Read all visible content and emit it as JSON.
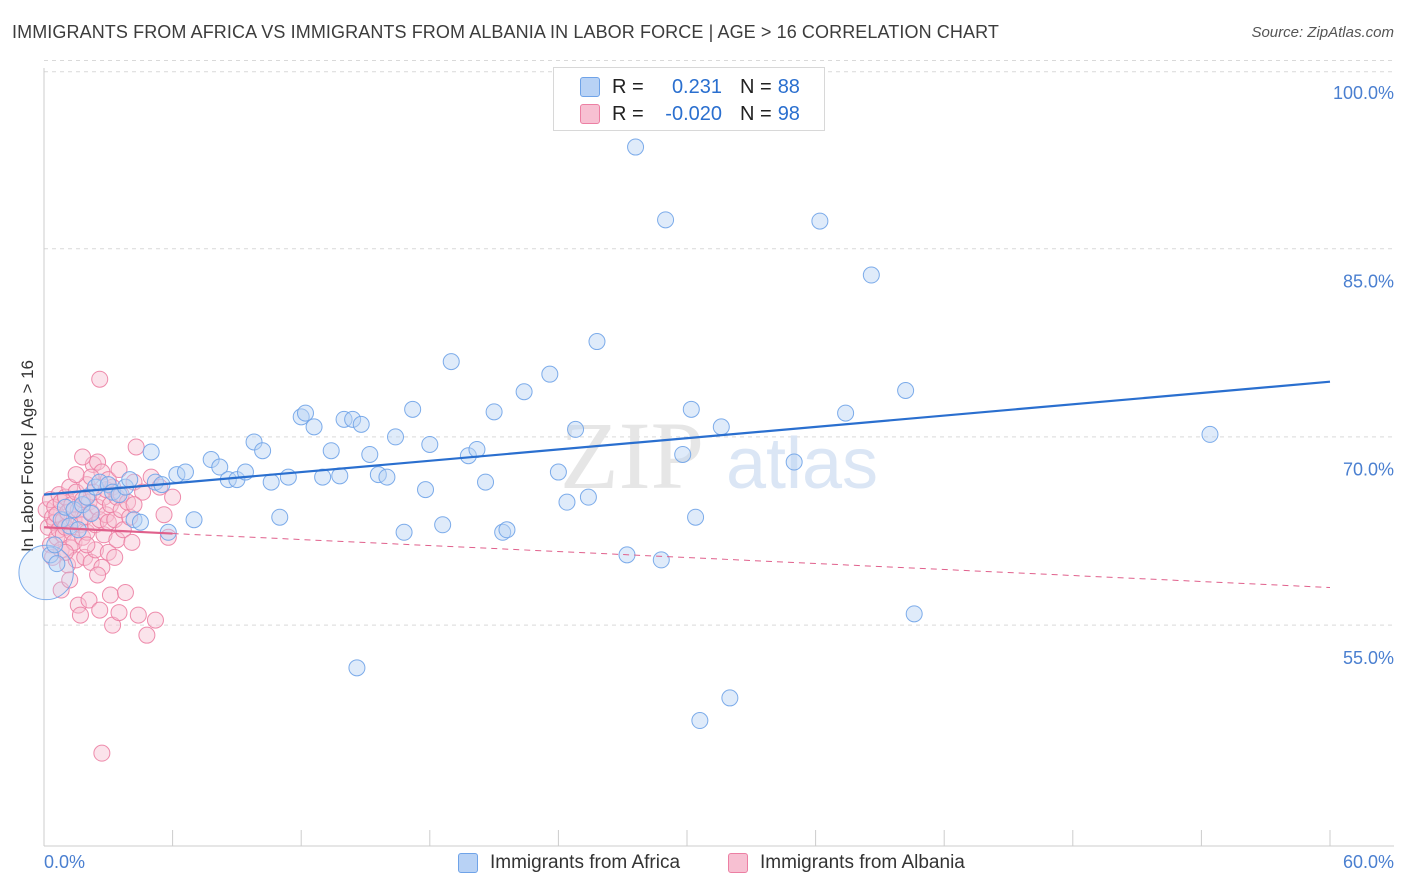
{
  "title": "IMMIGRANTS FROM AFRICA VS IMMIGRANTS FROM ALBANIA IN LABOR FORCE | AGE > 16 CORRELATION CHART",
  "source": "Source: ZipAtlas.com",
  "watermark": {
    "zip": "ZIP",
    "atlas": "atlas"
  },
  "colors": {
    "africa": "#6fa3e8",
    "africa_fill": "#b8d2f5",
    "africa_line": "#2a6fcf",
    "albania": "#ec7fa3",
    "albania_fill": "#f7c0d2",
    "albania_line": "#e0608c",
    "tick_label": "#4a7fd0",
    "grid": "#d9d9d9"
  },
  "legend": {
    "rows": [
      {
        "series": "africa",
        "r_label": "R =",
        "r_value": "0.231",
        "n_label": "N =",
        "n_value": "88"
      },
      {
        "series": "albania",
        "r_label": "R =",
        "r_value": "-0.020",
        "n_label": "N =",
        "n_value": "98"
      }
    ]
  },
  "bottom_legend": [
    {
      "series": "africa",
      "label": "Immigrants from Africa"
    },
    {
      "series": "albania",
      "label": "Immigrants from Albania"
    }
  ],
  "chart_data": {
    "type": "scatter",
    "title": "IMMIGRANTS FROM AFRICA VS IMMIGRANTS FROM ALBANIA IN LABOR FORCE | AGE > 16 CORRELATION CHART",
    "xlabel": "",
    "ylabel": "In Labor Force | Age > 16",
    "xlim": [
      0,
      60
    ],
    "ylim": [
      40,
      102
    ],
    "x_tick_labels": [
      "0.0%",
      "60.0%"
    ],
    "y_ticks": [
      100,
      85,
      70,
      55
    ],
    "y_tick_labels": [
      "100.0%",
      "85.0%",
      "70.0%",
      "55.0%"
    ],
    "series": [
      {
        "name": "Immigrants from Africa",
        "key": "africa",
        "R": 0.231,
        "N": 88,
        "trend": {
          "x0": 0,
          "y0": 68.0,
          "x1": 60,
          "y1": 77.0
        },
        "points": [
          [
            0.1,
            61.8,
            3.4
          ],
          [
            0.3,
            63.2,
            1
          ],
          [
            0.5,
            64.0,
            1
          ],
          [
            0.6,
            62.5,
            1
          ],
          [
            0.8,
            66.0,
            1
          ],
          [
            1.0,
            67.0,
            1
          ],
          [
            1.2,
            65.5,
            1
          ],
          [
            1.4,
            66.8,
            1
          ],
          [
            1.6,
            65.2,
            1
          ],
          [
            1.8,
            67.2,
            1
          ],
          [
            2.0,
            67.8,
            1
          ],
          [
            2.2,
            66.5,
            1
          ],
          [
            2.4,
            68.6,
            1
          ],
          [
            2.6,
            69.0,
            1
          ],
          [
            3.0,
            68.8,
            1
          ],
          [
            3.2,
            68.2,
            1
          ],
          [
            3.5,
            68.0,
            1
          ],
          [
            3.8,
            68.6,
            1
          ],
          [
            4.0,
            69.2,
            1
          ],
          [
            4.2,
            66.0,
            1
          ],
          [
            4.5,
            65.8,
            1
          ],
          [
            5.0,
            71.4,
            1
          ],
          [
            5.2,
            69.0,
            1
          ],
          [
            5.5,
            68.8,
            1
          ],
          [
            5.8,
            65.0,
            1
          ],
          [
            6.2,
            69.6,
            1
          ],
          [
            6.6,
            69.8,
            1
          ],
          [
            7.0,
            66.0,
            1
          ],
          [
            7.8,
            70.8,
            1
          ],
          [
            8.2,
            70.2,
            1
          ],
          [
            8.6,
            69.2,
            1
          ],
          [
            9.0,
            69.2,
            1
          ],
          [
            9.4,
            69.8,
            1
          ],
          [
            9.8,
            72.2,
            1
          ],
          [
            10.2,
            71.5,
            1
          ],
          [
            10.6,
            69.0,
            1
          ],
          [
            11.0,
            66.2,
            1
          ],
          [
            11.4,
            69.4,
            1
          ],
          [
            12.0,
            74.2,
            1
          ],
          [
            12.2,
            74.5,
            1
          ],
          [
            12.6,
            73.4,
            1
          ],
          [
            13.0,
            69.4,
            1
          ],
          [
            13.4,
            71.5,
            1
          ],
          [
            13.8,
            69.5,
            1
          ],
          [
            14.0,
            74.0,
            1
          ],
          [
            14.4,
            74.0,
            1
          ],
          [
            14.8,
            73.6,
            1
          ],
          [
            15.2,
            71.2,
            1
          ],
          [
            15.6,
            69.6,
            1
          ],
          [
            16.0,
            69.4,
            1
          ],
          [
            16.4,
            72.6,
            1
          ],
          [
            16.8,
            65.0,
            1
          ],
          [
            17.2,
            74.8,
            1
          ],
          [
            17.8,
            68.4,
            1
          ],
          [
            18.0,
            72.0,
            1
          ],
          [
            18.6,
            65.6,
            1
          ],
          [
            19.0,
            78.6,
            1
          ],
          [
            19.8,
            71.1,
            1
          ],
          [
            20.2,
            71.6,
            1
          ],
          [
            20.6,
            69.0,
            1
          ],
          [
            21.0,
            74.6,
            1
          ],
          [
            21.4,
            65.0,
            1
          ],
          [
            21.6,
            65.2,
            1
          ],
          [
            22.4,
            76.2,
            1
          ],
          [
            23.6,
            77.6,
            1
          ],
          [
            24.0,
            69.8,
            1
          ],
          [
            24.4,
            67.4,
            1
          ],
          [
            24.8,
            73.2,
            1
          ],
          [
            25.4,
            67.8,
            1
          ],
          [
            25.8,
            80.2,
            1
          ],
          [
            27.2,
            63.2,
            1
          ],
          [
            27.6,
            95.7,
            1
          ],
          [
            28.8,
            62.8,
            1
          ],
          [
            29.0,
            89.9,
            1
          ],
          [
            29.8,
            71.2,
            1
          ],
          [
            30.2,
            74.8,
            1
          ],
          [
            30.4,
            66.2,
            1
          ],
          [
            30.6,
            50.0,
            1
          ],
          [
            31.6,
            73.4,
            1
          ],
          [
            32.0,
            51.8,
            1
          ],
          [
            35.0,
            70.6,
            1
          ],
          [
            36.2,
            89.8,
            1
          ],
          [
            37.4,
            74.5,
            1
          ],
          [
            38.6,
            85.5,
            1
          ],
          [
            40.2,
            76.3,
            1
          ],
          [
            40.6,
            58.5,
            1
          ],
          [
            14.6,
            54.2,
            1
          ],
          [
            54.4,
            72.8,
            1
          ]
        ]
      },
      {
        "name": "Immigrants from Albania",
        "key": "albania",
        "R": -0.02,
        "N": 98,
        "trend_solid": {
          "x0": 0,
          "y0": 65.4,
          "x1": 6.0,
          "y1": 64.9
        },
        "trend_dashed": {
          "x0": 6.0,
          "y0": 64.9,
          "x1": 60,
          "y1": 60.6
        },
        "points": [
          [
            0.1,
            66.8,
            1
          ],
          [
            0.2,
            65.4,
            1
          ],
          [
            0.3,
            64.0,
            1
          ],
          [
            0.3,
            67.6,
            1
          ],
          [
            0.4,
            66.2,
            1
          ],
          [
            0.4,
            63.0,
            1
          ],
          [
            0.5,
            65.8,
            1
          ],
          [
            0.5,
            67.0,
            1
          ],
          [
            0.6,
            64.6,
            1
          ],
          [
            0.6,
            66.4,
            1
          ],
          [
            0.7,
            68.0,
            1
          ],
          [
            0.7,
            65.2,
            1
          ],
          [
            0.8,
            63.6,
            1
          ],
          [
            0.8,
            67.4,
            1
          ],
          [
            0.9,
            66.0,
            1
          ],
          [
            0.9,
            64.8,
            1
          ],
          [
            1.0,
            67.8,
            1
          ],
          [
            1.0,
            65.4,
            1
          ],
          [
            1.1,
            62.4,
            1
          ],
          [
            1.1,
            66.6,
            1
          ],
          [
            1.2,
            63.8,
            1
          ],
          [
            1.2,
            68.6,
            1
          ],
          [
            1.3,
            65.0,
            1
          ],
          [
            1.3,
            67.2,
            1
          ],
          [
            1.4,
            66.0,
            1
          ],
          [
            1.4,
            64.2,
            1
          ],
          [
            1.5,
            68.2,
            1
          ],
          [
            1.5,
            62.8,
            1
          ],
          [
            1.6,
            66.8,
            1
          ],
          [
            1.6,
            59.2,
            1
          ],
          [
            1.7,
            65.6,
            1
          ],
          [
            1.7,
            58.4,
            1
          ],
          [
            1.8,
            67.6,
            1
          ],
          [
            1.8,
            64.6,
            1
          ],
          [
            1.9,
            66.2,
            1
          ],
          [
            1.9,
            63.0,
            1
          ],
          [
            2.0,
            68.8,
            1
          ],
          [
            2.0,
            65.0,
            1
          ],
          [
            2.1,
            67.4,
            1
          ],
          [
            2.1,
            59.6,
            1
          ],
          [
            2.2,
            66.6,
            1
          ],
          [
            2.2,
            62.6,
            1
          ],
          [
            2.3,
            70.4,
            1
          ],
          [
            2.3,
            68.2,
            1
          ],
          [
            2.4,
            65.6,
            1
          ],
          [
            2.4,
            63.6,
            1
          ],
          [
            2.5,
            70.6,
            1
          ],
          [
            2.5,
            67.0,
            1
          ],
          [
            2.6,
            66.0,
            1
          ],
          [
            2.6,
            58.8,
            1
          ],
          [
            2.7,
            69.8,
            1
          ],
          [
            2.7,
            62.2,
            1
          ],
          [
            2.8,
            67.8,
            1
          ],
          [
            2.8,
            64.8,
            1
          ],
          [
            2.9,
            68.4,
            1
          ],
          [
            2.9,
            66.4,
            1
          ],
          [
            3.0,
            63.4,
            1
          ],
          [
            3.0,
            65.8,
            1
          ],
          [
            3.1,
            67.2,
            1
          ],
          [
            3.1,
            60.0,
            1
          ],
          [
            3.2,
            68.6,
            1
          ],
          [
            3.2,
            57.6,
            1
          ],
          [
            3.3,
            66.0,
            1
          ],
          [
            3.3,
            63.0,
            1
          ],
          [
            3.4,
            67.8,
            1
          ],
          [
            3.4,
            64.4,
            1
          ],
          [
            3.5,
            58.6,
            1
          ],
          [
            3.6,
            66.8,
            1
          ],
          [
            3.6,
            68.0,
            1
          ],
          [
            3.7,
            65.2,
            1
          ],
          [
            3.8,
            60.2,
            1
          ],
          [
            3.9,
            67.4,
            1
          ],
          [
            4.0,
            66.2,
            1
          ],
          [
            4.1,
            64.2,
            1
          ],
          [
            4.2,
            69.0,
            1
          ],
          [
            4.3,
            71.8,
            1
          ],
          [
            4.4,
            58.4,
            1
          ],
          [
            4.6,
            68.2,
            1
          ],
          [
            4.8,
            56.8,
            1
          ],
          [
            5.0,
            69.4,
            1
          ],
          [
            5.2,
            58.0,
            1
          ],
          [
            5.4,
            68.6,
            1
          ],
          [
            5.6,
            66.4,
            1
          ],
          [
            5.8,
            64.6,
            1
          ],
          [
            6.0,
            67.8,
            1
          ],
          [
            2.6,
            77.2,
            1
          ],
          [
            2.7,
            47.4,
            1
          ],
          [
            1.5,
            69.6,
            1
          ],
          [
            1.8,
            71.0,
            1
          ],
          [
            2.2,
            69.4,
            1
          ],
          [
            0.8,
            60.4,
            1
          ],
          [
            1.2,
            61.2,
            1
          ],
          [
            2.5,
            61.6,
            1
          ],
          [
            3.0,
            69.2,
            1
          ],
          [
            3.5,
            70.0,
            1
          ],
          [
            4.2,
            67.2,
            1
          ],
          [
            1.0,
            63.4,
            1
          ],
          [
            2.0,
            64.0,
            1
          ]
        ]
      }
    ]
  }
}
